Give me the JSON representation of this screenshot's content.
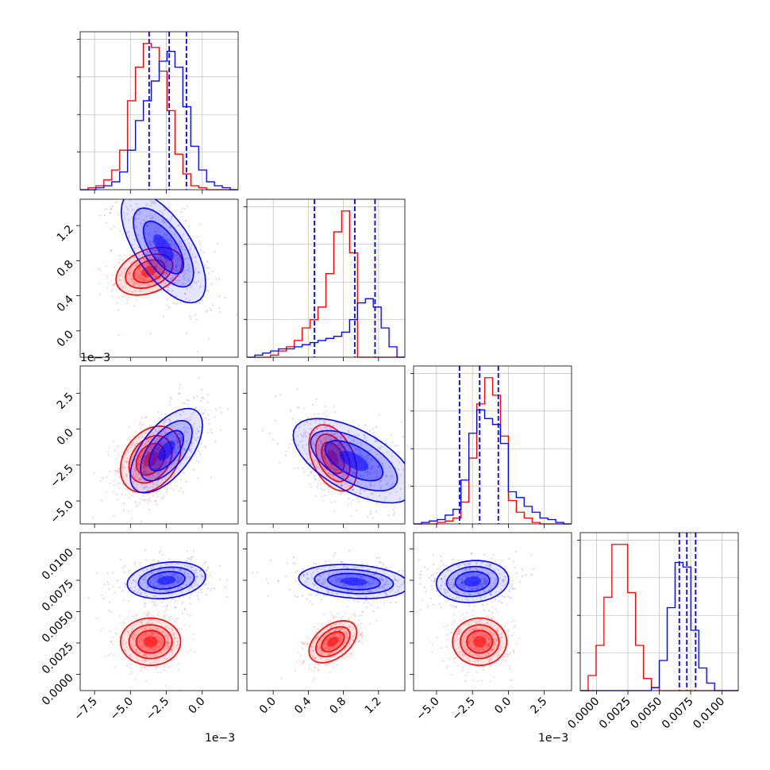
{
  "chart_data": {
    "type": "corner",
    "title": "",
    "series": [
      {
        "name": "",
        "color": "#0000ff"
      },
      {
        "name": "",
        "color": "#ff0000"
      }
    ],
    "params": [
      {
        "range": [
          -0.0085,
          0.0025
        ],
        "ticks": [
          -0.0075,
          -0.005,
          -0.0025,
          0.0
        ],
        "tick_labels": [
          "−7.5",
          "−5.0",
          "−2.5",
          "0.0"
        ],
        "offset": "1e−3"
      },
      {
        "range": [
          -0.0003,
          0.0015
        ],
        "ticks": [
          0.0,
          0.0004,
          0.0008,
          0.0012
        ],
        "tick_labels": [
          "0.0",
          "0.4",
          "0.8",
          "1.2"
        ],
        "offset": "1e−3"
      },
      {
        "range": [
          -0.0066,
          0.0044
        ],
        "ticks": [
          -0.005,
          -0.0025,
          0.0,
          0.0025
        ],
        "tick_labels": [
          "−5.0",
          "−2.5",
          "0.0",
          "2.5"
        ],
        "offset": "1e−3"
      },
      {
        "range": [
          -0.0013,
          0.0113
        ],
        "ticks": [
          0.0,
          0.0025,
          0.005,
          0.0075,
          0.01
        ],
        "tick_labels": [
          "0.0000",
          "0.0025",
          "0.0050",
          "0.0075",
          "0.0100"
        ],
        "offset": ""
      }
    ],
    "quantiles_blue": [
      [
        -0.0037,
        -0.0023,
        -0.0011
      ],
      [
        0.00047,
        0.00093,
        0.00116
      ],
      [
        -0.0034,
        -0.002,
        -0.0007
      ],
      [
        0.0066,
        0.0072,
        0.0079
      ]
    ],
    "histograms": [
      {
        "bin_range": [
          -0.0085,
          0.0025
        ],
        "red": [
          0,
          1,
          2,
          5,
          10,
          20,
          45,
          62,
          74,
          72,
          60,
          40,
          18,
          8,
          2,
          1,
          0,
          0,
          0,
          0
        ],
        "blue": [
          0,
          0,
          1,
          2,
          4,
          9,
          20,
          35,
          45,
          55,
          65,
          70,
          62,
          42,
          22,
          10,
          4,
          2,
          1,
          0
        ]
      },
      {
        "bin_range": [
          -0.0003,
          0.0015
        ],
        "red": [
          0,
          0,
          0,
          1,
          3,
          5,
          8,
          14,
          18,
          24,
          40,
          60,
          70,
          50,
          0,
          0,
          0,
          0,
          0,
          0
        ],
        "blue": [
          0,
          1,
          2,
          3,
          4,
          4,
          5,
          6,
          7,
          8,
          9,
          10,
          12,
          18,
          26,
          28,
          24,
          14,
          5,
          0
        ]
      },
      {
        "bin_range": [
          -0.0066,
          0.0044
        ],
        "red": [
          0,
          0,
          0,
          1,
          2,
          4,
          15,
          45,
          82,
          100,
          88,
          60,
          16,
          8,
          4,
          1,
          0,
          0,
          0,
          0
        ],
        "blue": [
          0,
          1,
          2,
          3,
          6,
          10,
          30,
          62,
          78,
          72,
          68,
          55,
          22,
          18,
          12,
          8,
          4,
          3,
          1,
          0
        ]
      },
      {
        "bin_range": [
          -0.0013,
          0.0113
        ],
        "red": [
          0,
          10,
          30,
          62,
          97,
          97,
          65,
          30,
          8,
          2,
          0,
          0,
          0,
          0,
          0,
          0,
          0,
          0,
          0,
          0
        ],
        "blue": [
          0,
          0,
          0,
          0,
          0,
          0,
          0,
          0,
          0,
          2,
          20,
          55,
          85,
          82,
          40,
          15,
          5,
          0,
          0,
          0
        ]
      }
    ],
    "pairs": [
      {
        "row": 1,
        "col": 0,
        "blue": {
          "cx": -0.0027,
          "cy": 0.00095,
          "sx": 0.0014,
          "sy": 0.0003,
          "rho": -0.65,
          "n": 450
        },
        "red": {
          "cx": -0.0037,
          "cy": 0.00068,
          "sx": 0.0011,
          "sy": 0.00013,
          "rho": 0.35,
          "n": 420
        }
      },
      {
        "row": 2,
        "col": 0,
        "blue": {
          "cx": -0.0025,
          "cy": -0.0015,
          "sx": 0.0012,
          "sy": 0.0014,
          "rho": 0.6,
          "n": 450
        },
        "red": {
          "cx": -0.0036,
          "cy": -0.0021,
          "sx": 0.001,
          "sy": 0.0011,
          "rho": 0.3,
          "n": 420
        }
      },
      {
        "row": 2,
        "col": 1,
        "blue": {
          "cx": 0.00092,
          "cy": -0.0022,
          "sx": 0.00033,
          "sy": 0.0014,
          "rho": -0.6,
          "n": 450
        },
        "red": {
          "cx": 0.00068,
          "cy": -0.002,
          "sx": 0.00013,
          "sy": 0.0011,
          "rho": -0.4,
          "n": 420
        }
      },
      {
        "row": 3,
        "col": 0,
        "blue": {
          "cx": -0.0025,
          "cy": 0.0075,
          "sx": 0.0013,
          "sy": 0.0007,
          "rho": 0.2,
          "n": 450
        },
        "red": {
          "cx": -0.0036,
          "cy": 0.0026,
          "sx": 0.001,
          "sy": 0.0009,
          "rho": 0.0,
          "n": 420
        }
      },
      {
        "row": 3,
        "col": 1,
        "blue": {
          "cx": 0.00092,
          "cy": 0.0074,
          "sx": 0.0003,
          "sy": 0.00065,
          "rho": -0.2,
          "n": 450
        },
        "red": {
          "cx": 0.00068,
          "cy": 0.0026,
          "sx": 0.00013,
          "sy": 0.0008,
          "rho": 0.45,
          "n": 420
        }
      },
      {
        "row": 3,
        "col": 2,
        "blue": {
          "cx": -0.0025,
          "cy": 0.0074,
          "sx": 0.0012,
          "sy": 0.0008,
          "rho": 0.1,
          "n": 450
        },
        "red": {
          "cx": -0.002,
          "cy": 0.0026,
          "sx": 0.0009,
          "sy": 0.0009,
          "rho": 0.0,
          "n": 420
        }
      }
    ]
  }
}
